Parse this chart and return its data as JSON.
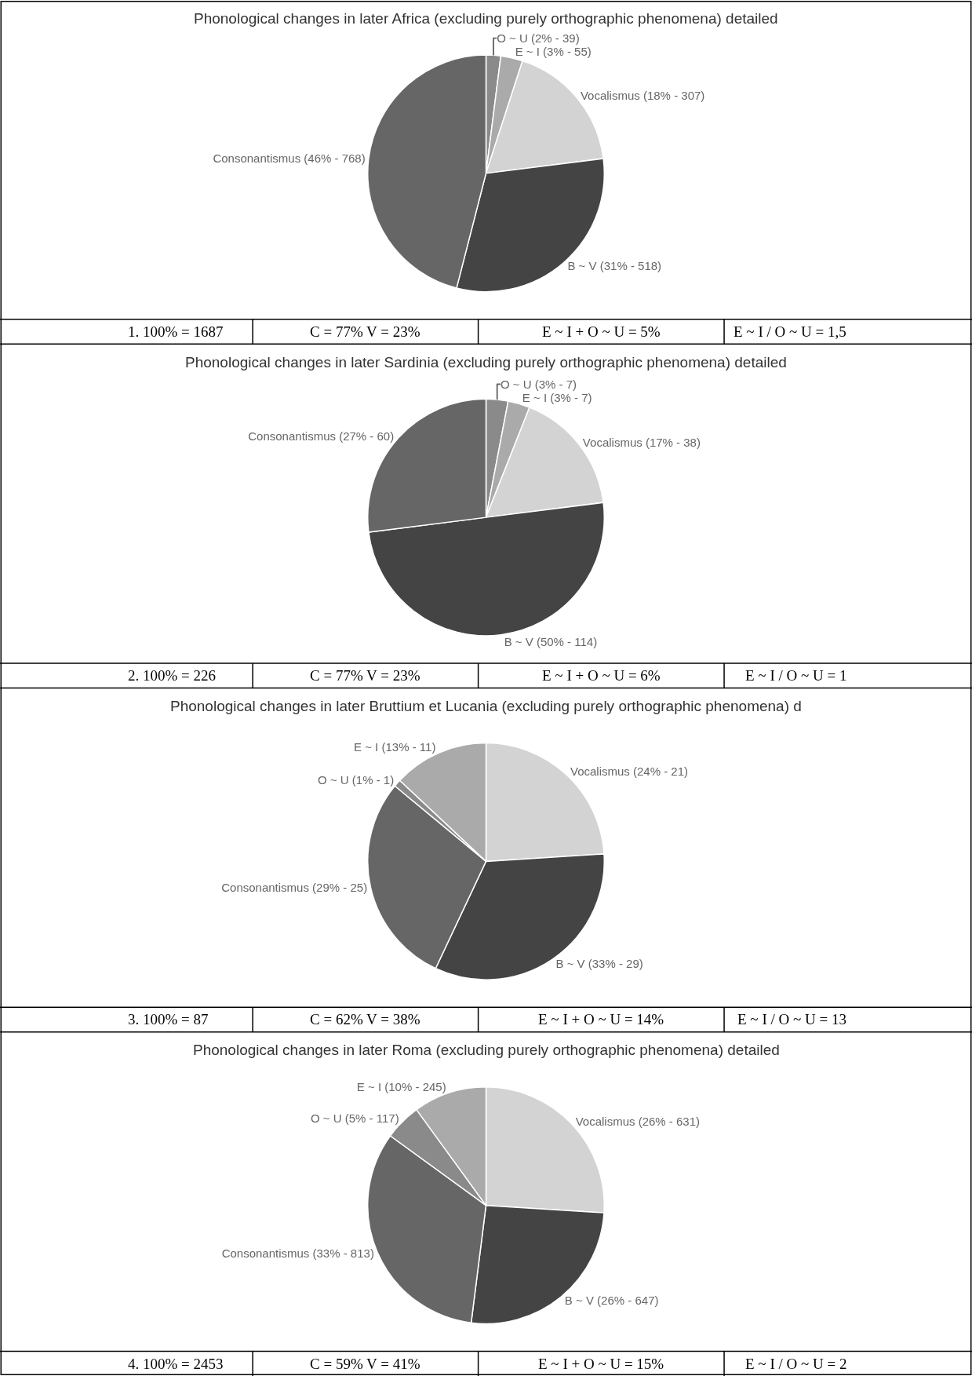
{
  "chart_data": [
    {
      "type": "pie",
      "title": "Phonological changes in later Africa (excluding purely orthographic phenomena) detailed",
      "categories": [
        "O ~ U",
        "E ~ I",
        "Vocalismus",
        "B ~ V",
        "Consonantismus"
      ],
      "values": [
        2,
        3,
        18,
        31,
        46
      ],
      "colors": [
        "#8a8a8a",
        "#aaaaaa",
        "#d3d3d3",
        "#444444",
        "#666666"
      ],
      "value_labels": [
        "(2% - 39)",
        "(3% - 55)",
        "(18% - 307)",
        "(31% - 518)",
        "(46% - 768)"
      ],
      "annotations": [
        "1. 100% = 1687",
        "C = 77% V = 23%",
        "E ~ I + O ~ U = 5%",
        "E ~ I / O ~ U = 1,5"
      ],
      "legend": false
    },
    {
      "type": "pie",
      "title": "Phonological changes in later Sardinia (excluding purely orthographic phenomena) detailed",
      "categories": [
        "O ~ U",
        "E ~ I",
        "Vocalismus",
        "B ~ V",
        "Consonantismus"
      ],
      "values": [
        3,
        3,
        17,
        50,
        27
      ],
      "colors": [
        "#8a8a8a",
        "#aaaaaa",
        "#d3d3d3",
        "#444444",
        "#666666"
      ],
      "value_labels": [
        "(3% - 7)",
        "(3% - 7)",
        "(17% - 38)",
        "(50% - 114)",
        "(27% - 60)"
      ],
      "annotations": [
        "2. 100% = 226",
        "C = 77% V = 23%",
        "E ~ I + O ~ U = 6%",
        "E ~ I / O ~ U = 1"
      ],
      "legend": false
    },
    {
      "type": "pie",
      "title": "Phonological changes in later Bruttium et Lucania (excluding purely orthographic phenomena) d",
      "categories": [
        "Vocalismus",
        "B ~ V",
        "Consonantismus",
        "O ~ U",
        "E ~ I"
      ],
      "values": [
        24,
        33,
        29,
        1,
        13
      ],
      "colors": [
        "#d3d3d3",
        "#444444",
        "#666666",
        "#8a8a8a",
        "#aaaaaa"
      ],
      "value_labels": [
        "(24% - 21)",
        "(33% - 29)",
        "(29% - 25)",
        "(1% - 1)",
        "(13% - 11)"
      ],
      "annotations": [
        "3. 100% = 87",
        "C = 62% V = 38%",
        "E ~ I + O ~ U = 14%",
        "E ~ I / O ~ U = 13"
      ],
      "legend": false
    },
    {
      "type": "pie",
      "title": "Phonological changes in later Roma (excluding purely orthographic phenomena) detailed",
      "categories": [
        "Vocalismus",
        "B ~ V",
        "Consonantismus",
        "O ~ U",
        "E ~ I"
      ],
      "values": [
        26,
        26,
        33,
        5,
        10
      ],
      "colors": [
        "#d3d3d3",
        "#444444",
        "#666666",
        "#8a8a8a",
        "#aaaaaa"
      ],
      "value_labels": [
        "(26% - 631)",
        "(26% - 647)",
        "(33% - 813)",
        "(5% - 117)",
        "(10% - 245)"
      ],
      "annotations": [
        "4. 100% = 2453",
        "C = 59% V = 41%",
        "E ~ I + O ~ U = 15%",
        "E ~ I / O ~ U = 2"
      ],
      "legend": false
    }
  ]
}
